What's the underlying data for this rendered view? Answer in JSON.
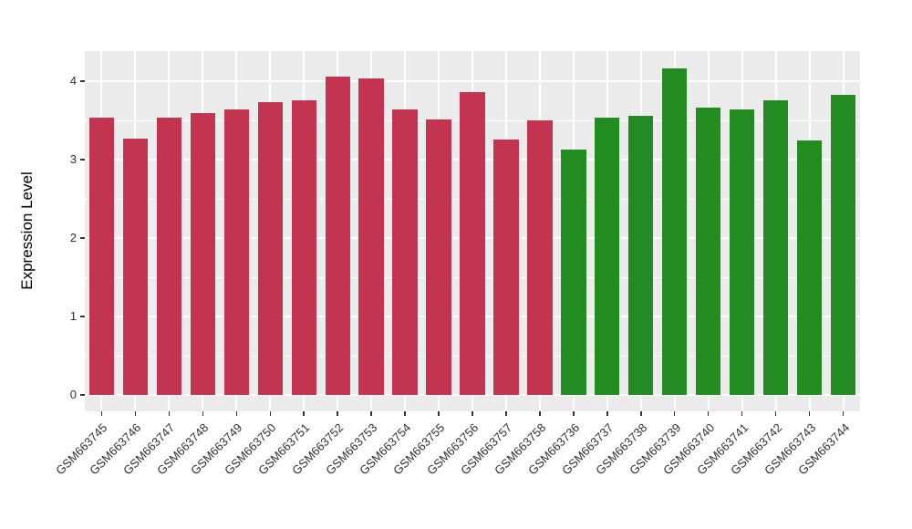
{
  "chart_data": {
    "type": "bar",
    "title": "",
    "xlabel": "",
    "ylabel": "Expression Level",
    "ylim": [
      0,
      4.38
    ],
    "yticks": [
      0,
      1,
      2,
      3,
      4
    ],
    "y_minor_ticks": [
      0.5,
      1.5,
      2.5,
      3.5
    ],
    "grid": "on",
    "legend": "none",
    "panel_background": "#EBEBEB",
    "gridline_color": "#FFFFFF",
    "tick_label_color": "#303030",
    "categories": [
      "GSM663745",
      "GSM663746",
      "GSM663747",
      "GSM663748",
      "GSM663749",
      "GSM663750",
      "GSM663751",
      "GSM663752",
      "GSM663753",
      "GSM663754",
      "GSM663755",
      "GSM663756",
      "GSM663757",
      "GSM663758",
      "GSM663736",
      "GSM663737",
      "GSM663738",
      "GSM663739",
      "GSM663740",
      "GSM663741",
      "GSM663742",
      "GSM663743",
      "GSM663744"
    ],
    "values": [
      3.53,
      3.27,
      3.53,
      3.59,
      3.64,
      3.73,
      3.76,
      4.06,
      4.04,
      3.64,
      3.51,
      3.86,
      3.26,
      3.5,
      3.13,
      3.53,
      3.56,
      4.16,
      3.66,
      3.64,
      3.76,
      3.25,
      3.83
    ],
    "groups": [
      0,
      0,
      0,
      0,
      0,
      0,
      0,
      0,
      0,
      0,
      0,
      0,
      0,
      0,
      1,
      1,
      1,
      1,
      1,
      1,
      1,
      1,
      1
    ],
    "group_colors": [
      "#C2344F",
      "#228B22"
    ]
  }
}
